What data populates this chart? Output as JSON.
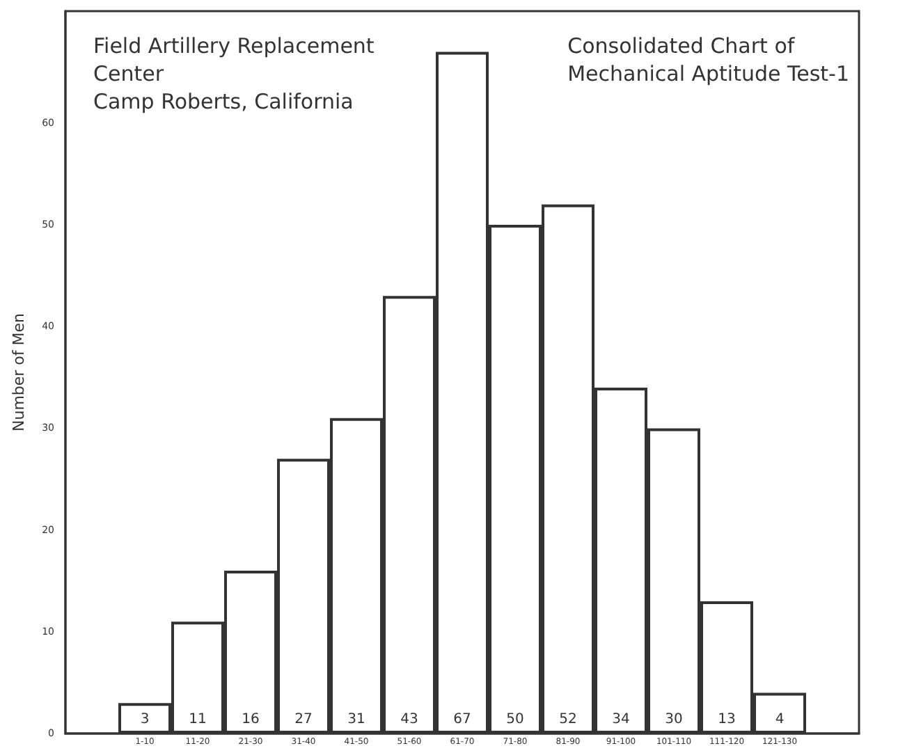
{
  "chart_data": {
    "type": "bar",
    "title": "Consolidated Chart of\nMechanical Aptitude Test-1",
    "subtitle": "Field Artillery Replacement\nCenter\nCamp Roberts, California",
    "ylabel": "Number of Men",
    "categories": [
      null,
      "1-10",
      "11-20",
      "21-30",
      "31-40",
      "41-50",
      "51-60",
      "61-70",
      "71-80",
      "81-90",
      "91-100",
      "101-110",
      "111-120",
      "121-130",
      null
    ],
    "values": [
      null,
      3,
      11,
      16,
      27,
      31,
      43,
      67,
      50,
      52,
      34,
      30,
      13,
      4,
      null
    ],
    "color": "#ffffff",
    "ylim": [
      0,
      71
    ],
    "yticks": [
      0,
      10,
      20,
      30,
      40,
      50,
      60
    ],
    "data_labels": true,
    "grid": false
  }
}
